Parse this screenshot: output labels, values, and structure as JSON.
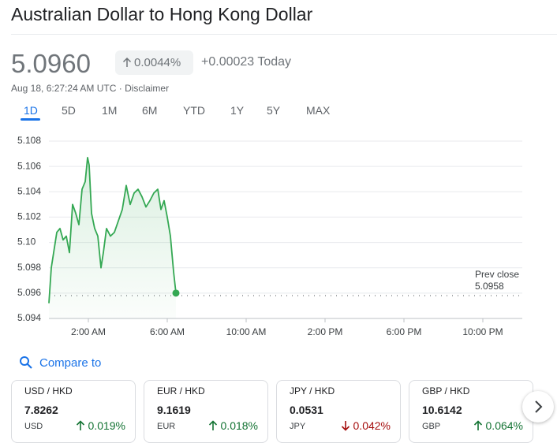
{
  "header": {
    "title": "Australian Dollar to Hong Kong Dollar",
    "price": "5.0960",
    "change_percent": "0.0044%",
    "change_today": "+0.00023 Today",
    "timestamp": "Aug 18, 6:27:24 AM UTC",
    "disclaimer": "Disclaimer"
  },
  "tabs": [
    "1D",
    "5D",
    "1M",
    "6M",
    "YTD",
    "1Y",
    "5Y",
    "MAX"
  ],
  "active_tab": 0,
  "chart_data": {
    "type": "line",
    "color": "#34a853",
    "x": [
      0,
      0.12,
      0.24,
      0.4,
      0.56,
      0.72,
      0.88,
      1.04,
      1.2,
      1.36,
      1.52,
      1.68,
      1.84,
      1.96,
      2.04,
      2.16,
      2.32,
      2.48,
      2.64,
      2.76,
      2.92,
      3.12,
      3.32,
      3.52,
      3.72,
      3.92,
      4.12,
      4.32,
      4.52,
      4.72,
      4.92,
      5.12,
      5.32,
      5.52,
      5.68,
      5.84,
      6.0,
      6.16,
      6.32,
      6.44
    ],
    "values": [
      5.0952,
      5.098,
      5.0992,
      5.1008,
      5.1011,
      5.1002,
      5.1005,
      5.0992,
      5.103,
      5.1023,
      5.1014,
      5.1042,
      5.1048,
      5.1067,
      5.1061,
      5.1023,
      5.1011,
      5.1005,
      5.098,
      5.0992,
      5.1011,
      5.1005,
      5.1008,
      5.1017,
      5.1026,
      5.1045,
      5.103,
      5.1039,
      5.1042,
      5.1036,
      5.1028,
      5.1033,
      5.1039,
      5.1042,
      5.1026,
      5.1033,
      5.102,
      5.1005,
      5.0977,
      5.096
    ],
    "xlim": [
      0,
      24
    ],
    "xticks": [
      {
        "value": 2,
        "label": "2:00 AM"
      },
      {
        "value": 6,
        "label": "6:00 AM"
      },
      {
        "value": 10,
        "label": "10:00 AM"
      },
      {
        "value": 14,
        "label": "2:00 PM"
      },
      {
        "value": 18,
        "label": "6:00 PM"
      },
      {
        "value": 22,
        "label": "10:00 PM"
      }
    ],
    "ylim": [
      5.094,
      5.108
    ],
    "yticks": [
      5.094,
      5.096,
      5.098,
      {
        "value": 5.1,
        "label": "5.10"
      },
      5.102,
      5.104,
      5.106,
      5.108
    ],
    "grid": true,
    "prev_close_label": "Prev close",
    "prev_close": 5.0958
  },
  "compare_to": "Compare to",
  "cards": [
    {
      "pair": "USD / HKD",
      "price": "7.8262",
      "ticker": "USD",
      "change": "0.019%",
      "direction": "up"
    },
    {
      "pair": "EUR / HKD",
      "price": "9.1619",
      "ticker": "EUR",
      "change": "0.018%",
      "direction": "up"
    },
    {
      "pair": "JPY / HKD",
      "price": "0.0531",
      "ticker": "JPY",
      "change": "0.042%",
      "direction": "down"
    },
    {
      "pair": "GBP / HKD",
      "price": "10.6142",
      "ticker": "GBP",
      "change": "0.064%",
      "direction": "up"
    }
  ]
}
